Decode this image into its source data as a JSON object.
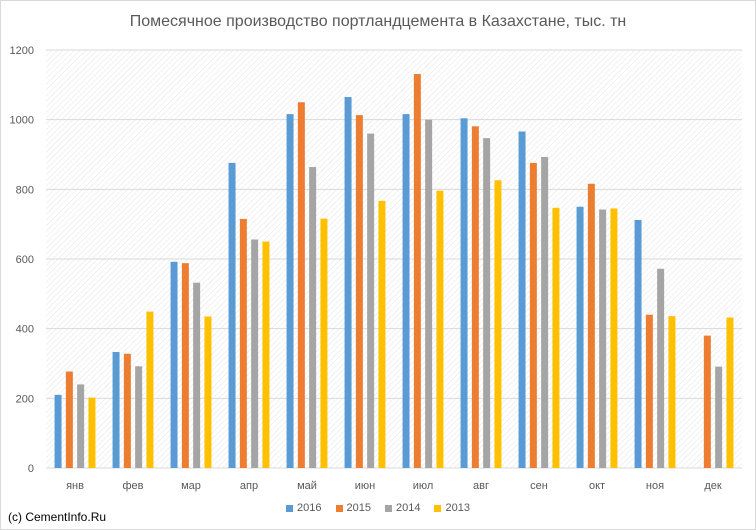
{
  "chart_data": {
    "type": "bar",
    "title": "Помесячное производство портландцемента в Казахстане, тыс. тн",
    "categories": [
      "янв",
      "фев",
      "мар",
      "апр",
      "май",
      "июн",
      "июл",
      "авг",
      "сен",
      "окт",
      "ноя",
      "дек"
    ],
    "series": [
      {
        "name": "2016",
        "color": "#5b9bd5",
        "values": [
          210,
          333,
          592,
          876,
          1016,
          1065,
          1016,
          1004,
          966,
          750,
          712,
          null
        ]
      },
      {
        "name": "2015",
        "color": "#ed7d31",
        "values": [
          277,
          328,
          588,
          715,
          1050,
          1013,
          1131,
          981,
          876,
          816,
          440,
          380
        ]
      },
      {
        "name": "2014",
        "color": "#a5a5a5",
        "values": [
          240,
          292,
          532,
          656,
          864,
          960,
          1000,
          947,
          893,
          742,
          572,
          291
        ]
      },
      {
        "name": "2013",
        "color": "#ffc000",
        "values": [
          202,
          449,
          435,
          650,
          716,
          767,
          796,
          826,
          747,
          745,
          436,
          432
        ]
      }
    ],
    "ylim": [
      0,
      1200
    ],
    "yticks": [
      0,
      200,
      400,
      600,
      800,
      1000,
      1200
    ],
    "grid": true,
    "legend": "bottom"
  },
  "copyright": "(c) CementInfo.Ru"
}
